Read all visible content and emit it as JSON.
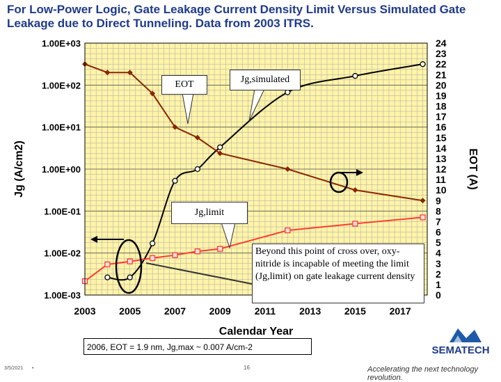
{
  "title": "For Low-Power Logic, Gate Leakage Current Density Limit Versus Simulated Gate Leakage due to Direct Tunneling. Data from 2003 ITRS.",
  "chart_data": {
    "type": "line",
    "xlabel": "Calendar Year",
    "ylabel": "Jg (A/cm2)",
    "y2label": "EOT (A)",
    "x_ticks": [
      "2003",
      "2005",
      "2007",
      "2009",
      "2011",
      "2013",
      "2015",
      "2017"
    ],
    "xlim": [
      2003,
      2018.2
    ],
    "y_ticks": [
      "1.00E+03",
      "1.00E+02",
      "1.00E+01",
      "1.00E+00",
      "1.00E-01",
      "1.00E-02",
      "1.00E-03"
    ],
    "ylim_log10": [
      -3,
      3
    ],
    "y2_ticks": [
      "24",
      "23",
      "22",
      "21",
      "20",
      "19",
      "18",
      "17",
      "16",
      "15",
      "14",
      "13",
      "12",
      "11",
      "10",
      "9",
      "8",
      "7",
      "6",
      "5",
      "4",
      "3",
      "2",
      "1",
      "0"
    ],
    "y2lim": [
      0,
      24
    ],
    "grid": true,
    "series": [
      {
        "name": "Jg,simulated",
        "axis": "left",
        "color": "#000000",
        "marker": "circle",
        "x": [
          2004,
          2005,
          2006,
          2007,
          2008,
          2009,
          2012,
          2015,
          2018
        ],
        "log10_y": [
          -2.58,
          -2.58,
          -1.77,
          -0.28,
          0.0,
          0.52,
          1.83,
          2.22,
          2.5
        ]
      },
      {
        "name": "Jg,limit",
        "axis": "left",
        "color": "#ff3b30",
        "marker": "square",
        "x": [
          2003,
          2004,
          2005,
          2006,
          2007,
          2008,
          2009,
          2012,
          2015,
          2018
        ],
        "log10_y": [
          -2.67,
          -2.27,
          -2.2,
          -2.12,
          -2.05,
          -1.96,
          -1.9,
          -1.46,
          -1.3,
          -1.15
        ]
      },
      {
        "name": "EOT",
        "axis": "right",
        "color": "#8b2500",
        "marker": "diamond",
        "x": [
          2003,
          2004,
          2005,
          2006,
          2007,
          2008,
          2009,
          2012,
          2015,
          2018
        ],
        "y": [
          22,
          21.2,
          21.2,
          19.2,
          16.0,
          15.0,
          13.5,
          12.0,
          10.0,
          9.0
        ]
      }
    ],
    "callouts": {
      "eot": "EOT",
      "jg_simulated": "Jg,simulated",
      "jg_limit": "Jg,limit",
      "crossover": "Beyond this point of cross over, oxy-nitride is incapable of meeting the limit (Jg,limit) on gate leakage current density"
    }
  },
  "note": "2006, EOT = 1.9 nm, Jg,max ~ 0.007 A/cm-2",
  "footer": {
    "date": "3/5/2021",
    "bullet": "•",
    "page": "16",
    "logo": "SEMATECH",
    "tagline": "Accelerating the next technology revolution."
  },
  "colors": {
    "title": "#1f3a8a",
    "plot_bg": "#fff4a8",
    "grid": "#a8a8a8"
  }
}
